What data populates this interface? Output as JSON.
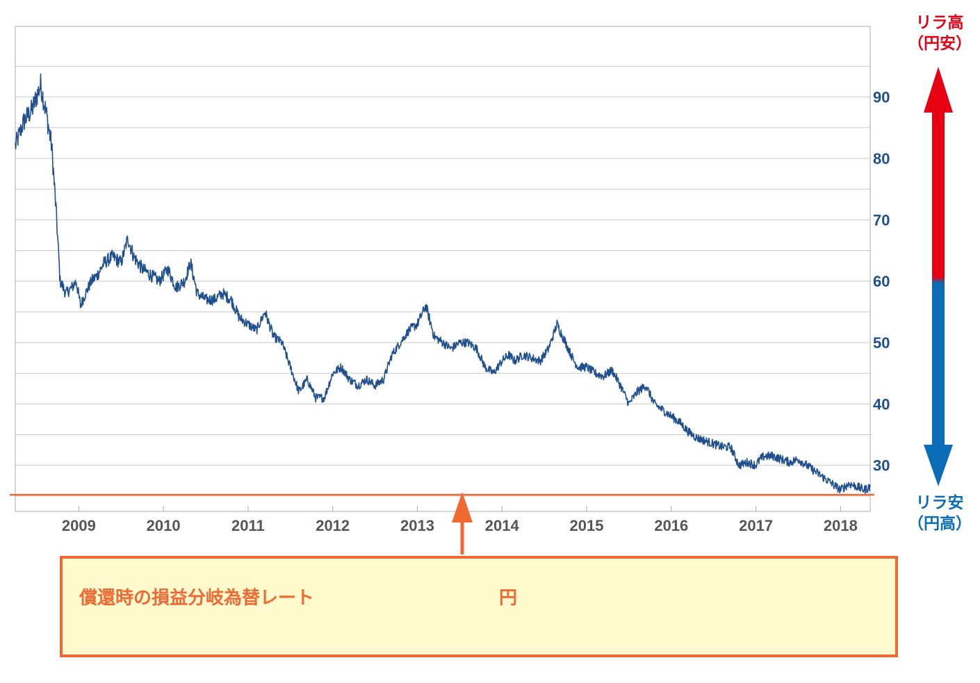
{
  "colors": {
    "series": "#1f4f8c",
    "ytick": "#1f4f8c",
    "xtick": "#555555",
    "grid": "#c8c8c8",
    "breakeven_line": "#ef6a33",
    "arrow_up": "#e60012",
    "arrow_down": "#0a6cb7",
    "box_fill": "#fefacd",
    "box_border": "#ef6a33"
  },
  "chart_data": {
    "type": "line",
    "title": "",
    "xlabel": "",
    "ylabel": "",
    "x_ticks": [
      "2009",
      "2010",
      "2011",
      "2012",
      "2013",
      "2014",
      "2015",
      "2016",
      "2017",
      "2018"
    ],
    "y_ticks": [
      30,
      40,
      50,
      60,
      70,
      80,
      90
    ],
    "ylim": [
      22.5,
      101.5
    ],
    "xlim": [
      2008.25,
      2018.35
    ],
    "grid": "horizontal",
    "y_axis_side": "right",
    "series": [
      {
        "x": [
          2008.25,
          2008.35,
          2008.45,
          2008.55,
          2008.62,
          2008.68,
          2008.73,
          2008.78,
          2008.85,
          2008.92,
          2008.97,
          2009.02,
          2009.08,
          2009.15,
          2009.22,
          2009.3,
          2009.4,
          2009.5,
          2009.58,
          2009.65,
          2009.75,
          2009.85,
          2009.95,
          2010.05,
          2010.15,
          2010.25,
          2010.32,
          2010.4,
          2010.5,
          2010.6,
          2010.7,
          2010.8,
          2010.9,
          2011.0,
          2011.1,
          2011.2,
          2011.3,
          2011.4,
          2011.5,
          2011.6,
          2011.7,
          2011.8,
          2011.9,
          2012.0,
          2012.1,
          2012.2,
          2012.3,
          2012.4,
          2012.5,
          2012.6,
          2012.7,
          2012.8,
          2012.9,
          2013.0,
          2013.1,
          2013.2,
          2013.3,
          2013.4,
          2013.5,
          2013.6,
          2013.7,
          2013.8,
          2013.9,
          2014.0,
          2014.08,
          2014.15,
          2014.25,
          2014.35,
          2014.45,
          2014.55,
          2014.65,
          2014.75,
          2014.85,
          2014.9,
          2015.0,
          2015.1,
          2015.2,
          2015.3,
          2015.4,
          2015.5,
          2015.6,
          2015.7,
          2015.8,
          2015.9,
          2016.0,
          2016.1,
          2016.2,
          2016.3,
          2016.4,
          2016.5,
          2016.6,
          2016.7,
          2016.8,
          2016.9,
          2017.0,
          2017.05,
          2017.1,
          2017.2,
          2017.3,
          2017.4,
          2017.5,
          2017.6,
          2017.7,
          2017.8,
          2017.9,
          2018.0,
          2018.1,
          2018.2,
          2018.28,
          2018.35
        ],
        "values": [
          82,
          86,
          88,
          92,
          87,
          82,
          72,
          60,
          58,
          59,
          60,
          56,
          58,
          60,
          61,
          63,
          64,
          63,
          67,
          64,
          62,
          61,
          60,
          62,
          59,
          60,
          63,
          58,
          57,
          57,
          58,
          57,
          54,
          53,
          52,
          55,
          51,
          50,
          46,
          42,
          44,
          41,
          41,
          45,
          46,
          44,
          43,
          44,
          43,
          44,
          48,
          50,
          52,
          53,
          56,
          51,
          50,
          49,
          50,
          50,
          49,
          46,
          45,
          47,
          48,
          47,
          48,
          47.5,
          47,
          49,
          53,
          50,
          47,
          46,
          46,
          45,
          44.5,
          45.5,
          43,
          40,
          42,
          43,
          40,
          39,
          38,
          37,
          35.5,
          34.5,
          34,
          33.5,
          33,
          33,
          30,
          30.5,
          30,
          31,
          31.5,
          31.5,
          31,
          30.5,
          31,
          30,
          29,
          28,
          27,
          26,
          27,
          26.5,
          26,
          26.5
        ],
        "noise_amplitude": 1.2
      }
    ],
    "breakeven_rate": 25.2,
    "right_annotations": {
      "top": [
        "リラ高",
        "（円安）"
      ],
      "bottom": [
        "リラ安",
        "（円高）"
      ]
    }
  },
  "info_box": {
    "label": "償還時の損益分岐為替レート",
    "unit": "円"
  }
}
